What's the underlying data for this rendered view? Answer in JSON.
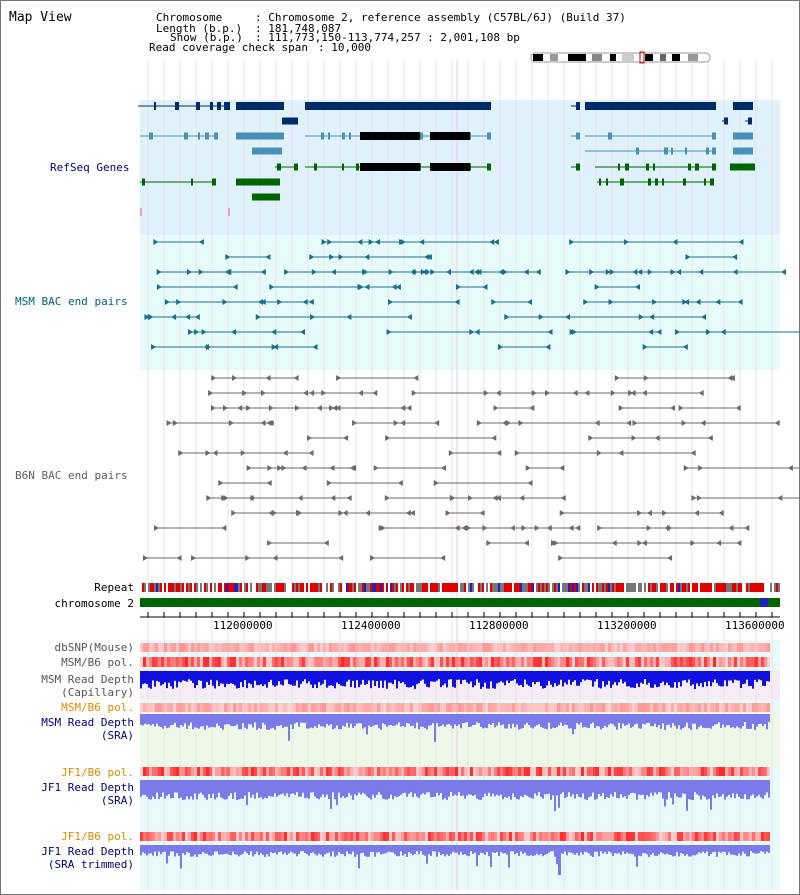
{
  "title": "Map View",
  "info": {
    "chromosome_label": "Chromosome",
    "chromosome_value": ": Chromosome 2, reference assembly (C57BL/6J) (Build 37)",
    "length_label": "Length (b.p.)",
    "length_value": ": 181,748,087",
    "show_label": "Show (b.p.)",
    "show_value": ": 111,773,150-113,774,257 : 2,001,108 bp",
    "coverage_label": "Read coverage check span",
    "coverage_value": ": 10,000"
  },
  "tracks": {
    "refseq": "RefSeq Genes",
    "msm_bac": "MSM BAC end pairs",
    "b6n_bac": "B6N BAC end pairs",
    "repeat": "Repeat",
    "chromosome": "chromosome 2",
    "dbsnp": "dbSNP(Mouse)",
    "msm_b6_pol_1": "MSM/B6 pol.",
    "msm_depth_cap_1": "MSM Read Depth",
    "msm_depth_cap_2": "(Capillary)",
    "msm_b6_pol_2": "MSM/B6 pol.",
    "msm_depth_sra_1": "MSM Read Depth",
    "msm_depth_sra_2": "(SRA)",
    "jf1_b6_pol_1": "JF1/B6 pol.",
    "jf1_depth_sra_1": "JF1 Read Depth",
    "jf1_depth_sra_2": "(SRA)",
    "jf1_b6_pol_2": "JF1/B6 pol.",
    "jf1_depth_trim_1": "JF1 Read Depth",
    "jf1_depth_trim_2": "(SRA trimmed)"
  },
  "axis": {
    "ticks": [
      "112000000",
      "112400000",
      "112800000",
      "113200000",
      "113600000"
    ]
  },
  "colors": {
    "refseq_bg": "#dff1fb",
    "msm_bac_bg": "#e8fbfb",
    "navy": "#002b6a",
    "teal": "#4a90b8",
    "green": "#006400",
    "msm_line": "#1a6f8a",
    "gray": "#666666",
    "blue_depth": "#1010e0",
    "sra_blue": "#7a7ae8",
    "orange": "#e08a00",
    "label_navy": "#000080",
    "label_teal": "#005f7f",
    "label_gray": "#5f5f5f"
  }
}
